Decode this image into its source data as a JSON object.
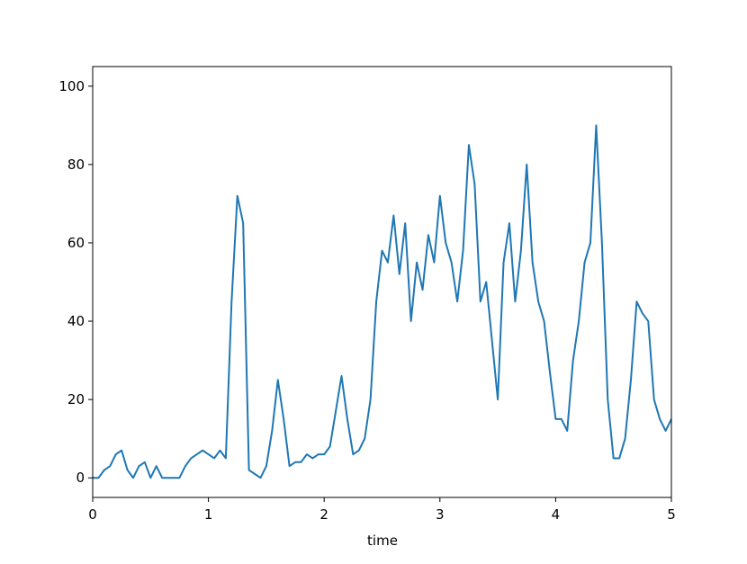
{
  "chart_data": {
    "type": "line",
    "x_label": "time",
    "x": [
      0,
      0.05,
      0.1,
      0.15,
      0.2,
      0.25,
      0.3,
      0.35,
      0.4,
      0.45,
      0.5,
      0.55,
      0.6,
      0.65,
      0.7,
      0.75,
      0.8,
      0.85,
      0.9,
      0.95,
      1,
      1.05,
      1.1,
      1.15,
      1.2,
      1.25,
      1.3,
      1.35,
      1.4,
      1.45,
      1.5,
      1.55,
      1.6,
      1.65,
      1.7,
      1.75,
      1.8,
      1.85,
      1.9,
      1.95,
      2,
      2.05,
      2.1,
      2.15,
      2.2,
      2.25,
      2.3,
      2.35,
      2.4,
      2.45,
      2.5,
      2.55,
      2.6,
      2.65,
      2.7,
      2.75,
      2.8,
      2.85,
      2.9,
      2.95,
      3,
      3.05,
      3.1,
      3.15,
      3.2,
      3.25,
      3.3,
      3.35,
      3.4,
      3.45,
      3.5,
      3.55,
      3.6,
      3.65,
      3.7,
      3.75,
      3.8,
      3.85,
      3.9,
      3.95,
      4,
      4.05,
      4.1,
      4.15,
      4.2,
      4.25,
      4.3,
      4.35,
      4.4,
      4.45,
      4.5,
      4.55,
      4.6,
      4.65,
      4.7,
      4.75,
      4.8,
      4.85,
      4.9,
      4.95,
      5
    ],
    "series": [
      {
        "color": "#1f77b4",
        "values": [
          0,
          0,
          2,
          3,
          6,
          7,
          2,
          0,
          3,
          4,
          0,
          3,
          0,
          0,
          0,
          0,
          3,
          5,
          6,
          7,
          6,
          5,
          7,
          5,
          45,
          72,
          65,
          2,
          1,
          0,
          3,
          12,
          25,
          15,
          3,
          4,
          4,
          6,
          5,
          6,
          6,
          8,
          17,
          26,
          15,
          6,
          7,
          10,
          20,
          45,
          58,
          55,
          67,
          52,
          65,
          40,
          55,
          48,
          62,
          55,
          72,
          60,
          55,
          45,
          58,
          85,
          75,
          45,
          50,
          35,
          20,
          55,
          65,
          45,
          58,
          80,
          55,
          45,
          40,
          27,
          15,
          15,
          12,
          30,
          40,
          55,
          60,
          90,
          60,
          20,
          5,
          5,
          10,
          25,
          45,
          42,
          40,
          20,
          15,
          12,
          15
        ]
      }
    ],
    "xlim": [
      0,
      5
    ],
    "xticks": [
      0,
      1,
      2,
      3,
      4,
      5
    ],
    "ylim": [
      -5,
      105
    ],
    "yticks": [
      0,
      20,
      40,
      60,
      80,
      100
    ]
  }
}
